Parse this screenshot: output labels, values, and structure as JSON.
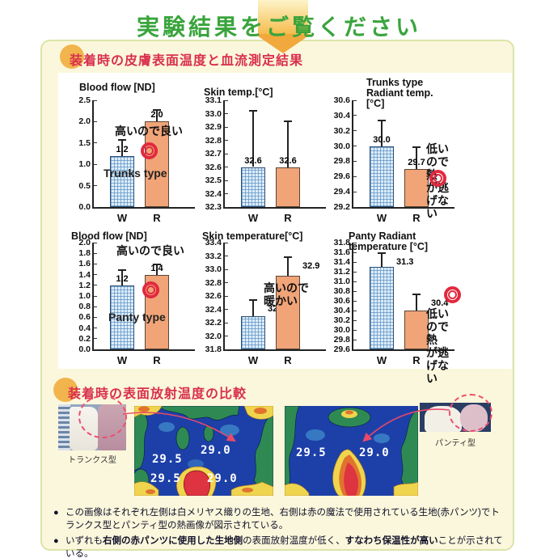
{
  "header": {
    "title": "実験結果をご覧ください",
    "title_color": "#3aa43c",
    "arrow_colors": {
      "band_top": "#fdf4c8",
      "band_bottom": "#f6bc4e",
      "point": "#f1a93e"
    }
  },
  "panel": {
    "bg": "#fbf7dc",
    "border": "#dbe4a9",
    "heading_color": "#d9304e",
    "badge_color": "#f2b44d"
  },
  "sections": [
    {
      "heading": "装着時の皮膚表面温度と血流測定結果"
    },
    {
      "heading": "装着時の表面放射温度の比較"
    }
  ],
  "chart_style": {
    "w_bar_fill": "#dcecf9",
    "w_bar_grid": "#4682b9",
    "w_bar_border": "#2e4d72",
    "r_bar_fill": "#f0a478",
    "r_bar_border": "#5a4636",
    "mark_color": "#e0293f"
  },
  "chart_data": [
    {
      "id": "blood-flow-trunks",
      "type": "bar",
      "title": "Blood flow [ND]",
      "title_offset": [
        10,
        6
      ],
      "ylim": [
        0.0,
        2.5
      ],
      "tick_step": 0.5,
      "decimals": 1,
      "categories": [
        "W",
        "R"
      ],
      "values": [
        1.2,
        2.0
      ],
      "error_tops": [
        1.6,
        2.3
      ],
      "value_labels": [
        "1.2",
        "2.0"
      ],
      "label_side": "top",
      "annotations": [
        {
          "text": "高いので良い",
          "x": 26,
          "y": 30,
          "style": "jp"
        },
        {
          "icon": "double-circle",
          "x": 58,
          "y": 52
        },
        {
          "text": "Trunks type",
          "x": 12,
          "y": 82,
          "style": "en"
        }
      ]
    },
    {
      "id": "skin-temp-trunks",
      "type": "bar",
      "title": "Skin temp.[°C]",
      "title_offset": [
        2,
        12
      ],
      "ylim": [
        32.3,
        33.1
      ],
      "tick_step": 0.1,
      "decimals": 1,
      "categories": [
        "W",
        "R"
      ],
      "values": [
        32.6,
        32.6
      ],
      "error_tops": [
        33.03,
        32.95
      ],
      "value_labels": [
        "32.6",
        "32.6"
      ],
      "label_side": "top",
      "annotations": []
    },
    {
      "id": "radiant-temp-trunks",
      "type": "bar",
      "title": "Trunks type\nRadiant temp. [°C]",
      "title_offset": [
        44,
        0
      ],
      "ylim": [
        29.2,
        30.6
      ],
      "tick_step": 0.2,
      "decimals": 1,
      "categories": [
        "W",
        "R"
      ],
      "values": [
        30.0,
        29.7
      ],
      "error_tops": [
        30.35,
        30.0
      ],
      "value_labels": [
        "30.0",
        "29.7"
      ],
      "label_side": "top",
      "annotations": [
        {
          "text": "低いので熱\nが逃げない",
          "x": 90,
          "y": 52,
          "style": "jp"
        },
        {
          "icon": "double-circle",
          "x": 94,
          "y": 86
        }
      ]
    },
    {
      "id": "blood-flow-panty",
      "type": "bar",
      "title": "Blood flow [ND]",
      "title_offset": [
        0,
        14
      ],
      "ylim": [
        0.0,
        2.0
      ],
      "tick_step": 0.2,
      "decimals": 1,
      "categories": [
        "W",
        "R"
      ],
      "values": [
        1.2,
        1.4
      ],
      "error_tops": [
        1.5,
        1.6
      ],
      "value_labels": [
        "1.2",
        "1.4"
      ],
      "label_side": "top",
      "annotations": [
        {
          "text": "高いので良い",
          "x": 28,
          "y": 2,
          "style": "jp"
        },
        {
          "icon": "double-circle",
          "x": 60,
          "y": 48
        },
        {
          "text": "Panty type",
          "x": 18,
          "y": 84,
          "style": "en"
        }
      ]
    },
    {
      "id": "skin-temp-panty",
      "type": "bar",
      "title": "Skin temperature[°C]",
      "title_offset": [
        0,
        14
      ],
      "ylim": [
        31.8,
        33.4
      ],
      "tick_step": 0.2,
      "decimals": 1,
      "categories": [
        "W",
        "R"
      ],
      "values": [
        32.3,
        32.9
      ],
      "error_tops": [
        32.55,
        33.2
      ],
      "value_labels": [
        "32.3",
        "32.9"
      ],
      "label_side": "right",
      "annotations": [
        {
          "text": "高いので\n暖かい",
          "x": 48,
          "y": 48,
          "style": "jp"
        }
      ]
    },
    {
      "id": "radiant-temp-panty",
      "type": "bar",
      "title": "Panty Radiant temperature [°C]",
      "title_offset": [
        22,
        14
      ],
      "ylim": [
        29.6,
        31.8
      ],
      "tick_step": 0.2,
      "decimals": 1,
      "categories": [
        "W",
        "R"
      ],
      "values": [
        31.3,
        30.4
      ],
      "error_tops": [
        31.6,
        30.75
      ],
      "value_labels": [
        "31.3",
        "30.4"
      ],
      "label_side": "right",
      "annotations": [
        {
          "icon": "double-circle",
          "x": 112,
          "y": 54
        },
        {
          "text": "低いので熱\nが逃げない",
          "x": 90,
          "y": 80,
          "style": "jp"
        }
      ]
    }
  ],
  "thermal": {
    "left_photo_label": "トランクス型",
    "right_photo_label": "パンティ型",
    "image1": {
      "readings": [
        "29.5",
        "29.0",
        "29.5",
        "29.0"
      ]
    },
    "image2": {
      "readings": [
        "29.5",
        "29.0"
      ]
    },
    "palette": {
      "bg": "#1d40a8",
      "green": "#2e8a52",
      "cyan": "#3f86c9",
      "yellow": "#efd54d",
      "orange": "#e0742e",
      "red": "#de3340"
    }
  },
  "notes": {
    "bullet": "●",
    "items": [
      {
        "segments": [
          {
            "text": "この画像はそれぞれ左側は白メリヤス織りの生地、右側は赤の魔法で使用されている生地(赤パンツ)でトランクス型とパンティ型の熱画像が図示されている。",
            "bold": false
          }
        ]
      },
      {
        "segments": [
          {
            "text": "いずれも",
            "bold": false
          },
          {
            "text": "右側の赤パンツに使用した生地側",
            "bold": true
          },
          {
            "text": "の表面放射温度が低く、",
            "bold": false
          },
          {
            "text": "すなわち保温性が高い",
            "bold": true
          },
          {
            "text": "ことが示されている。",
            "bold": false
          }
        ]
      }
    ]
  }
}
